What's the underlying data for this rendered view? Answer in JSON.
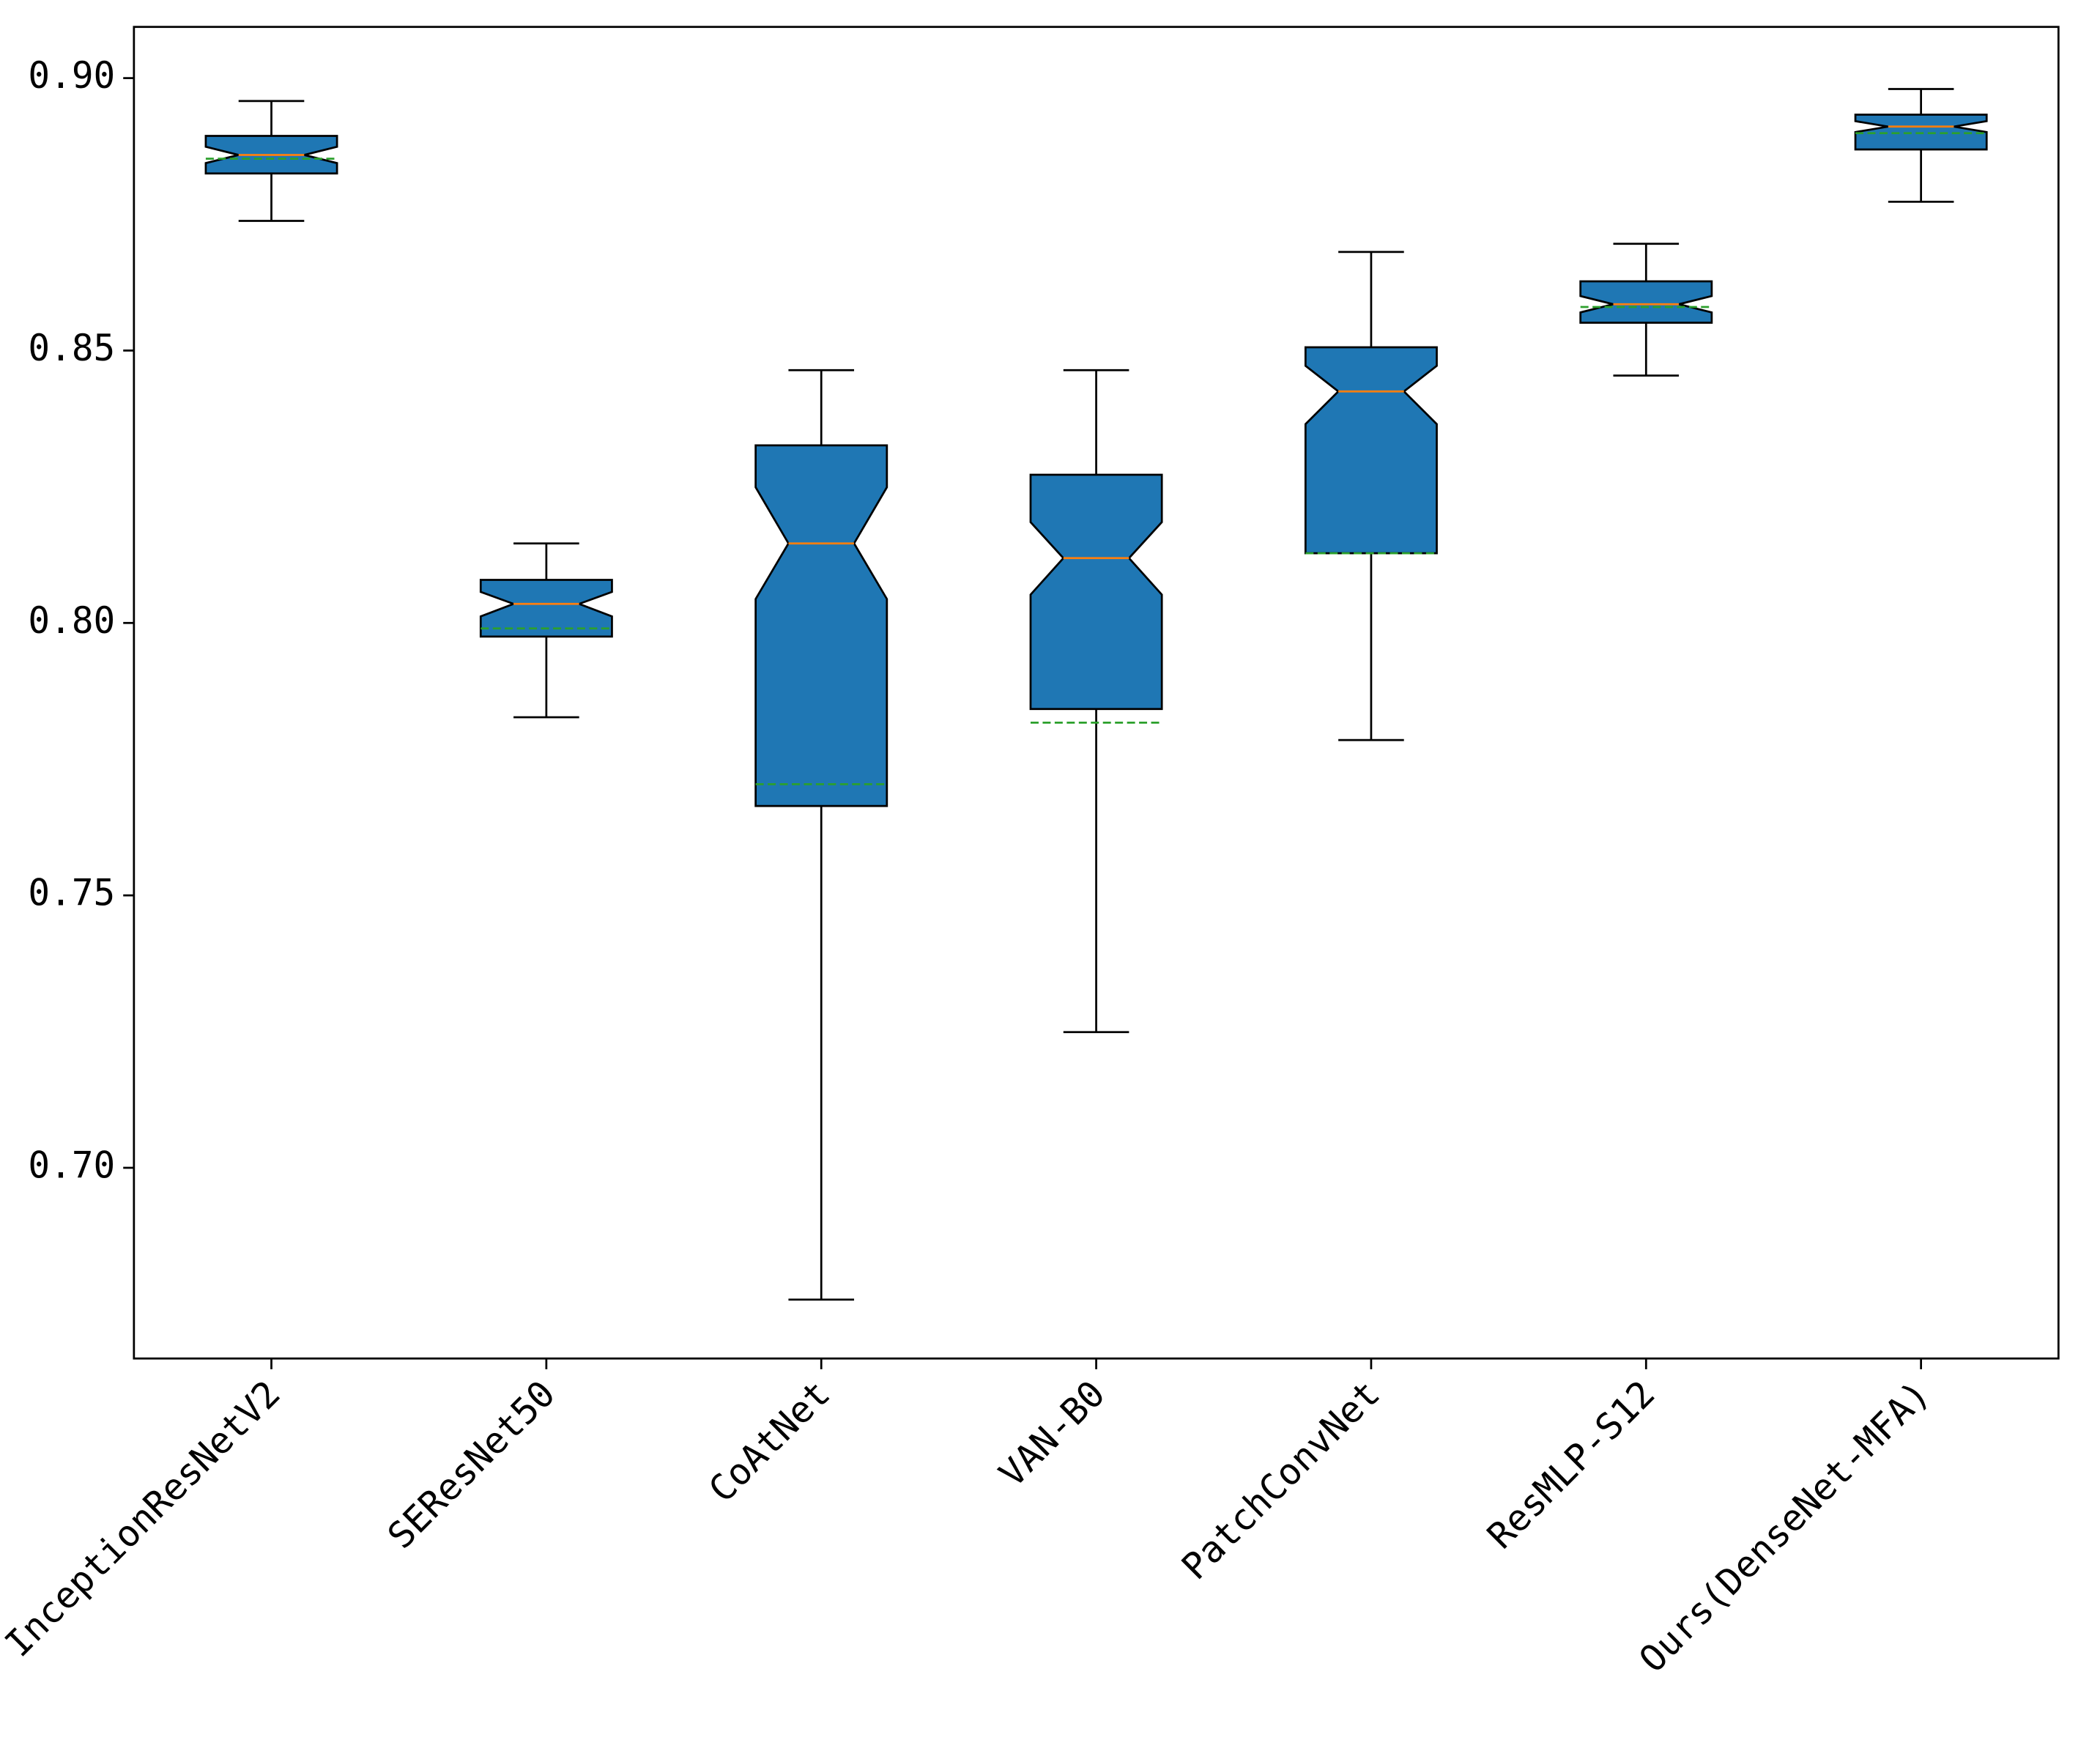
{
  "chart_data": {
    "type": "box",
    "categories": [
      "InceptionResNetV2",
      "SEResNet50",
      "CoAtNet",
      "VAN-B0",
      "PatchConvNet",
      "ResMLP-S12",
      "Ours(DenseNet-MFA)"
    ],
    "boxes": [
      {
        "whisker_low": 0.8738,
        "q1": 0.8825,
        "median": 0.8859,
        "q3": 0.8894,
        "whisker_high": 0.8958,
        "mean": 0.8852,
        "notch": [
          0.8844,
          0.8874
        ]
      },
      {
        "whisker_low": 0.7827,
        "q1": 0.7975,
        "median": 0.8035,
        "q3": 0.8079,
        "whisker_high": 0.8146,
        "mean": 0.799,
        "notch": [
          0.8012,
          0.8057
        ]
      },
      {
        "whisker_low": 0.6758,
        "q1": 0.7664,
        "median": 0.8146,
        "q3": 0.8326,
        "whisker_high": 0.8464,
        "mean": 0.7704,
        "notch": [
          0.8044,
          0.8249
        ]
      },
      {
        "whisker_low": 0.7249,
        "q1": 0.7842,
        "median": 0.8119,
        "q3": 0.8272,
        "whisker_high": 0.8464,
        "mean": 0.7817,
        "notch": [
          0.8052,
          0.8185
        ]
      },
      {
        "whisker_low": 0.7785,
        "q1": 0.8128,
        "median": 0.8425,
        "q3": 0.8506,
        "whisker_high": 0.8681,
        "mean": 0.8128,
        "notch": [
          0.8365,
          0.8472
        ]
      },
      {
        "whisker_low": 0.8454,
        "q1": 0.8551,
        "median": 0.8585,
        "q3": 0.8627,
        "whisker_high": 0.8696,
        "mean": 0.858,
        "notch": [
          0.857,
          0.86
        ]
      },
      {
        "whisker_low": 0.8773,
        "q1": 0.8869,
        "median": 0.8911,
        "q3": 0.8933,
        "whisker_high": 0.898,
        "mean": 0.8899,
        "notch": [
          0.8901,
          0.8921
        ]
      }
    ],
    "box_color": "#1f77b4",
    "median_color": "#ff7f0e",
    "mean_color": "#2ca02c",
    "ylim": [
      0.665,
      0.9094
    ],
    "yticks": [
      {
        "value": 0.7,
        "label": "0.70"
      },
      {
        "value": 0.75,
        "label": "0.75"
      },
      {
        "value": 0.8,
        "label": "0.80"
      },
      {
        "value": 0.85,
        "label": "0.85"
      },
      {
        "value": 0.9,
        "label": "0.90"
      }
    ],
    "grid": false
  }
}
